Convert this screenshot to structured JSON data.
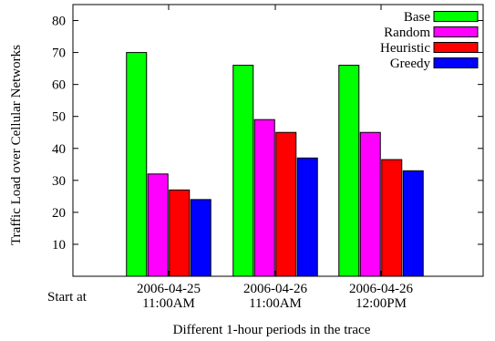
{
  "chart_data": {
    "type": "bar",
    "title": "",
    "xlabel": "Different 1-hour periods in the trace",
    "ylabel": "Traffic Load over Cellular Networks",
    "ylim": [
      0,
      85
    ],
    "yticks": [
      10,
      20,
      30,
      40,
      50,
      60,
      70,
      80
    ],
    "grid": false,
    "legend_position": "top-right",
    "row_label": "Start at",
    "categories": [
      [
        "2006-04-25",
        "11:00AM"
      ],
      [
        "2006-04-26",
        "11:00AM"
      ],
      [
        "2006-04-26",
        "12:00PM"
      ]
    ],
    "series": [
      {
        "name": "Base",
        "color": "#00ff00",
        "values": [
          70,
          66,
          66
        ]
      },
      {
        "name": "Random",
        "color": "#ff00ff",
        "values": [
          32,
          49,
          45
        ]
      },
      {
        "name": "Heuristic",
        "color": "#ff0000",
        "values": [
          27,
          45,
          36.5
        ]
      },
      {
        "name": "Greedy",
        "color": "#0000ff",
        "values": [
          24,
          37,
          33
        ]
      }
    ]
  }
}
